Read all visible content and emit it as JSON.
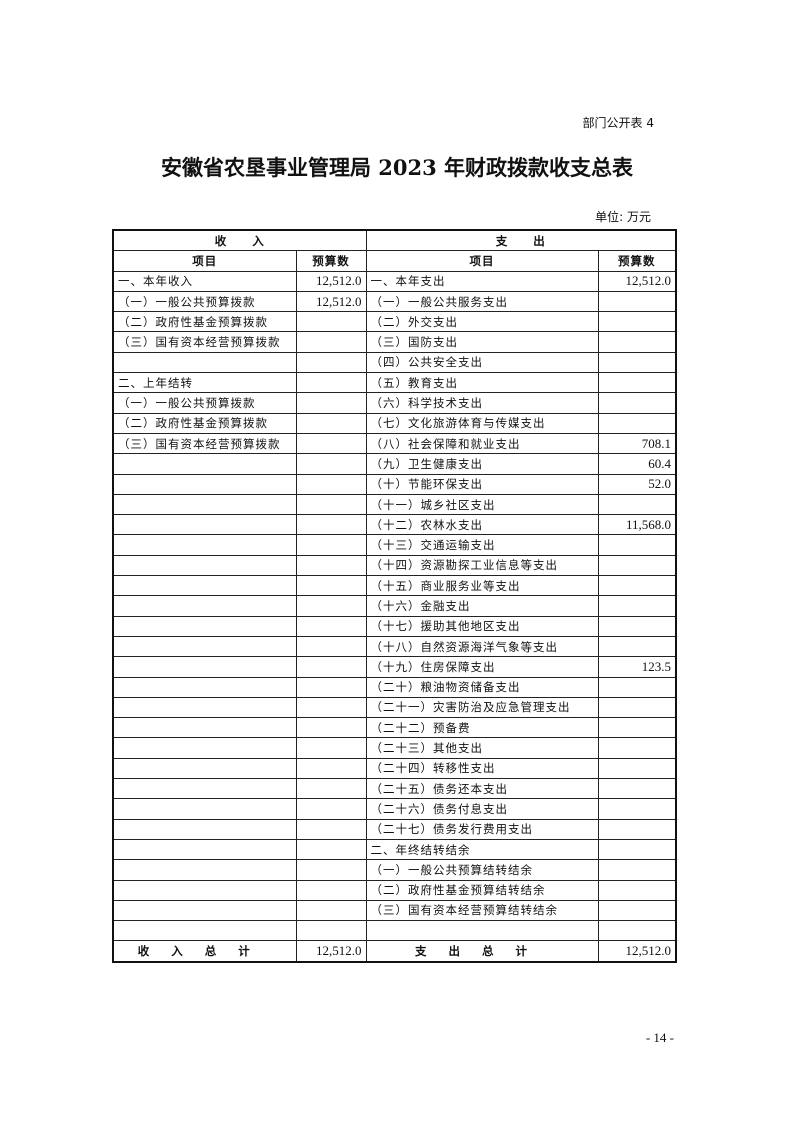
{
  "header": {
    "code": "部门公开表 4",
    "title": "安徽省农垦事业管理局 2023 年财政拨款收支总表",
    "unit": "单位: 万元"
  },
  "table": {
    "income_label": "收　　入",
    "expense_label": "支　　出",
    "col_item": "项目",
    "col_budget": "预算数",
    "rows": [
      [
        "一、本年收入",
        "12,512.0",
        "一、本年支出",
        "12,512.0"
      ],
      [
        "（一）一般公共预算拨款",
        "12,512.0",
        "（一）一般公共服务支出",
        ""
      ],
      [
        "（二）政府性基金预算拨款",
        "",
        "（二）外交支出",
        ""
      ],
      [
        "（三）国有资本经营预算拨款",
        "",
        "（三）国防支出",
        ""
      ],
      [
        "",
        "",
        "（四）公共安全支出",
        ""
      ],
      [
        "二、上年结转",
        "",
        "（五）教育支出",
        ""
      ],
      [
        "（一）一般公共预算拨款",
        "",
        "（六）科学技术支出",
        ""
      ],
      [
        "（二）政府性基金预算拨款",
        "",
        "（七）文化旅游体育与传媒支出",
        ""
      ],
      [
        "（三）国有资本经营预算拨款",
        "",
        "（八）社会保障和就业支出",
        "708.1"
      ],
      [
        "",
        "",
        "（九）卫生健康支出",
        "60.4"
      ],
      [
        "",
        "",
        "（十）节能环保支出",
        "52.0"
      ],
      [
        "",
        "",
        "（十一）城乡社区支出",
        ""
      ],
      [
        "",
        "",
        "（十二）农林水支出",
        "11,568.0"
      ],
      [
        "",
        "",
        "（十三）交通运输支出",
        ""
      ],
      [
        "",
        "",
        "（十四）资源勘探工业信息等支出",
        ""
      ],
      [
        "",
        "",
        "（十五）商业服务业等支出",
        ""
      ],
      [
        "",
        "",
        "（十六）金融支出",
        ""
      ],
      [
        "",
        "",
        "（十七）援助其他地区支出",
        ""
      ],
      [
        "",
        "",
        "（十八）自然资源海洋气象等支出",
        ""
      ],
      [
        "",
        "",
        "（十九）住房保障支出",
        "123.5"
      ],
      [
        "",
        "",
        "（二十）粮油物资储备支出",
        ""
      ],
      [
        "",
        "",
        "（二十一）灾害防治及应急管理支出",
        ""
      ],
      [
        "",
        "",
        "（二十二）预备费",
        ""
      ],
      [
        "",
        "",
        "（二十三）其他支出",
        ""
      ],
      [
        "",
        "",
        "（二十四）转移性支出",
        ""
      ],
      [
        "",
        "",
        "（二十五）债务还本支出",
        ""
      ],
      [
        "",
        "",
        "（二十六）债务付息支出",
        ""
      ],
      [
        "",
        "",
        "（二十七）债务发行费用支出",
        ""
      ],
      [
        "",
        "",
        "二、年终结转结余",
        ""
      ],
      [
        "",
        "",
        "（一）一般公共预算结转结余",
        ""
      ],
      [
        "",
        "",
        "（二）政府性基金预算结转结余",
        ""
      ],
      [
        "",
        "",
        "（三）国有资本经营预算结转结余",
        ""
      ],
      [
        "",
        "",
        "",
        ""
      ]
    ],
    "income_total_label": "收入总计",
    "income_total": "12,512.0",
    "expense_total_label": "支出总计",
    "expense_total": "12,512.0"
  },
  "page_number": "- 14 -"
}
